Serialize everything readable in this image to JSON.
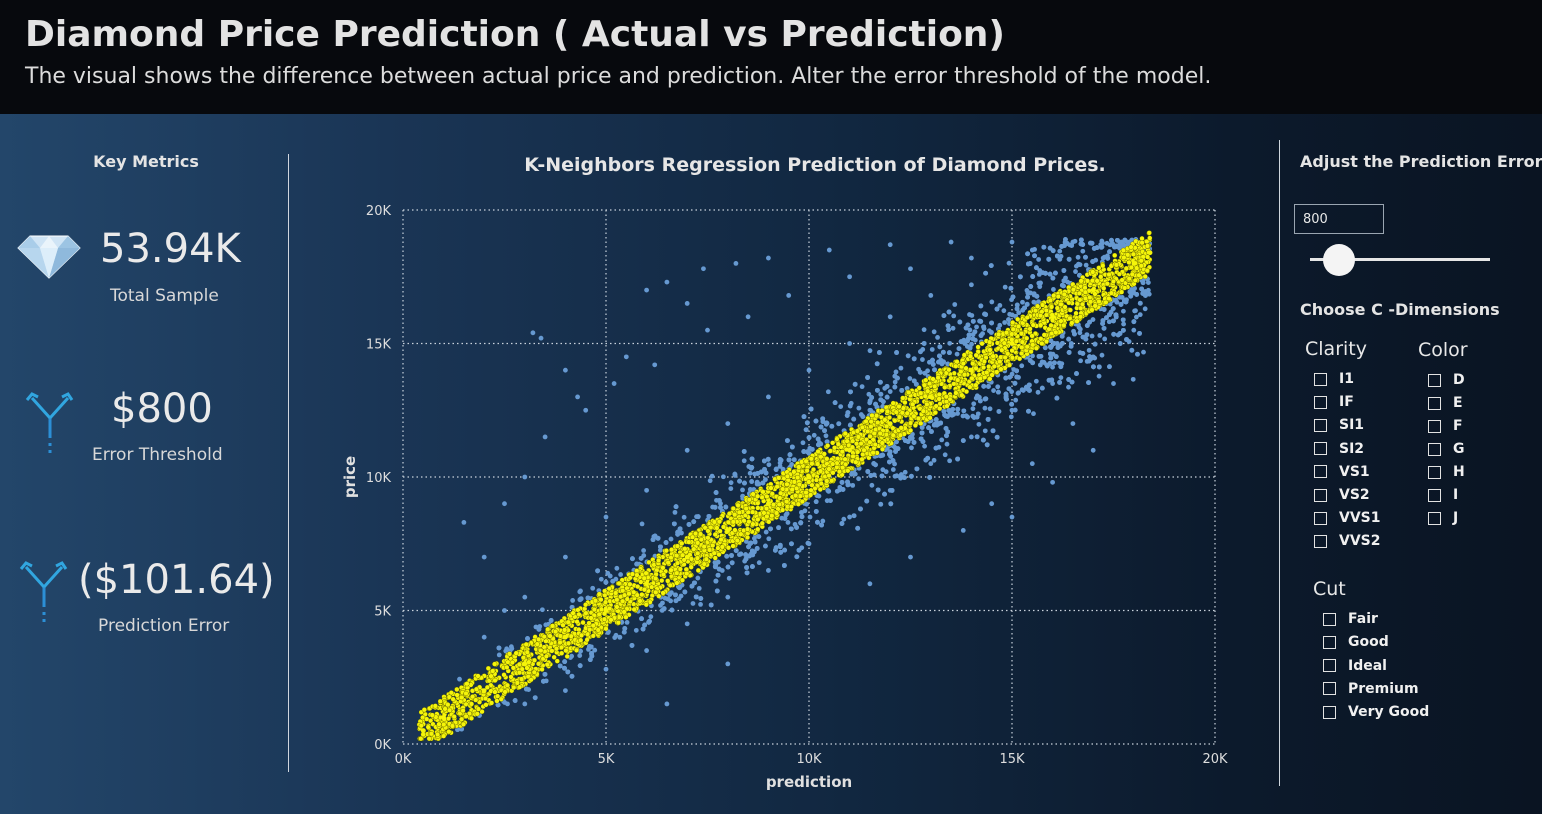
{
  "header": {
    "title": "Diamond Price Prediction ( Actual vs Prediction)",
    "subtitle": "The visual shows the difference between actual price and prediction. Alter the error threshold of the model."
  },
  "key_metrics": {
    "heading": "Key Metrics",
    "total_sample": {
      "value": "53.94K",
      "label": "Total Sample",
      "icon": "diamond-icon"
    },
    "error_threshold": {
      "value": "$800",
      "label": "Error Threshold",
      "icon": "split-arrow-icon"
    },
    "prediction_error": {
      "value": "($101.64)",
      "label": "Prediction Error",
      "icon": "split-arrow-icon"
    }
  },
  "controls": {
    "heading": "Adjust the Prediction Error",
    "input_value": "800",
    "slider": {
      "min": 0,
      "max": 10000,
      "value": 800
    },
    "dimensions_heading": "Choose  C -Dimensions",
    "clarity": {
      "title": "Clarity",
      "options": [
        "I1",
        "IF",
        "SI1",
        "SI2",
        "VS1",
        "VS2",
        "VVS1",
        "VVS2"
      ]
    },
    "color": {
      "title": "Color",
      "options": [
        "D",
        "E",
        "F",
        "G",
        "H",
        "I",
        "J"
      ]
    },
    "cut": {
      "title": "Cut",
      "options": [
        "Fair",
        "Good",
        "Ideal",
        "Premium",
        "Very Good"
      ]
    }
  },
  "colors": {
    "outside_threshold": "#6699d1",
    "within_threshold": "#f5f50a",
    "header_bg": "#07090d"
  },
  "chart_data": {
    "type": "scatter",
    "title": "K-Neighbors Regression Prediction of Diamond Prices.",
    "xlabel": "prediction",
    "ylabel": "price",
    "xlim": [
      0,
      20000
    ],
    "ylim": [
      0,
      20000
    ],
    "xticks": [
      0,
      5000,
      10000,
      15000,
      20000
    ],
    "yticks": [
      0,
      5000,
      10000,
      15000,
      20000
    ],
    "xtick_labels": [
      "0K",
      "5K",
      "10K",
      "15K",
      "20K"
    ],
    "ytick_labels": [
      "0K",
      "5K",
      "10K",
      "15K",
      "20K"
    ],
    "grid": true,
    "series": [
      {
        "values": [
          [
            3200,
            15400
          ],
          [
            3400,
            15200
          ],
          [
            6000,
            17000
          ],
          [
            6500,
            17300
          ],
          [
            7400,
            17800
          ],
          [
            8200,
            18000
          ],
          [
            4000,
            14000
          ],
          [
            4300,
            13000
          ],
          [
            5500,
            14500
          ],
          [
            7000,
            16500
          ],
          [
            9000,
            18200
          ],
          [
            10500,
            18500
          ],
          [
            12000,
            18700
          ],
          [
            13500,
            18800
          ],
          [
            15000,
            18800
          ],
          [
            16500,
            18800
          ],
          [
            17200,
            18600
          ],
          [
            1500,
            8300
          ],
          [
            2000,
            7000
          ],
          [
            2500,
            9000
          ],
          [
            3000,
            10000
          ],
          [
            3500,
            11500
          ],
          [
            4500,
            12500
          ],
          [
            5200,
            13500
          ],
          [
            6200,
            14200
          ],
          [
            7500,
            15500
          ],
          [
            8500,
            16000
          ],
          [
            9500,
            16800
          ],
          [
            11000,
            17500
          ],
          [
            12500,
            17800
          ],
          [
            14000,
            18200
          ],
          [
            15500,
            18500
          ],
          [
            2000,
            4000
          ],
          [
            2500,
            5000
          ],
          [
            3000,
            5500
          ],
          [
            4000,
            7000
          ],
          [
            5000,
            8500
          ],
          [
            6000,
            9500
          ],
          [
            7000,
            11000
          ],
          [
            8000,
            12000
          ],
          [
            9000,
            13000
          ],
          [
            10000,
            14000
          ],
          [
            11000,
            15000
          ],
          [
            12000,
            16000
          ],
          [
            13000,
            16800
          ],
          [
            14000,
            17200
          ],
          [
            3000,
            1500
          ],
          [
            4000,
            2000
          ],
          [
            5000,
            2800
          ],
          [
            6000,
            3500
          ],
          [
            7000,
            4500
          ],
          [
            8000,
            5500
          ],
          [
            9000,
            6500
          ],
          [
            10000,
            7500
          ],
          [
            11000,
            8500
          ],
          [
            12000,
            9500
          ],
          [
            13000,
            10500
          ],
          [
            14000,
            11500
          ],
          [
            15000,
            12500
          ],
          [
            16000,
            13500
          ],
          [
            17000,
            14500
          ],
          [
            18000,
            15500
          ],
          [
            6500,
            1500
          ],
          [
            8000,
            3000
          ],
          [
            11500,
            6000
          ],
          [
            12500,
            7000
          ],
          [
            14500,
            9000
          ],
          [
            15500,
            10500
          ],
          [
            16500,
            12000
          ],
          [
            17500,
            13500
          ],
          [
            13800,
            8000
          ],
          [
            15000,
            8500
          ],
          [
            16000,
            9800
          ],
          [
            17000,
            11000
          ],
          [
            12000,
            13200
          ],
          [
            11500,
            12500
          ]
        ]
      },
      {
        "values": [
          [
            500,
            500
          ],
          [
            1000,
            1000
          ],
          [
            2000,
            2000
          ],
          [
            3000,
            3000
          ],
          [
            4000,
            4000
          ],
          [
            5000,
            5000
          ],
          [
            6000,
            6000
          ],
          [
            7000,
            7000
          ],
          [
            8000,
            8000
          ],
          [
            9000,
            9000
          ],
          [
            10000,
            10000
          ],
          [
            11000,
            11000
          ],
          [
            12000,
            12000
          ],
          [
            13000,
            13000
          ],
          [
            14000,
            14000
          ],
          [
            15000,
            15000
          ],
          [
            16000,
            16000
          ],
          [
            17000,
            17000
          ],
          [
            18000,
            18000
          ],
          [
            18400,
            18400
          ]
        ]
      }
    ]
  }
}
